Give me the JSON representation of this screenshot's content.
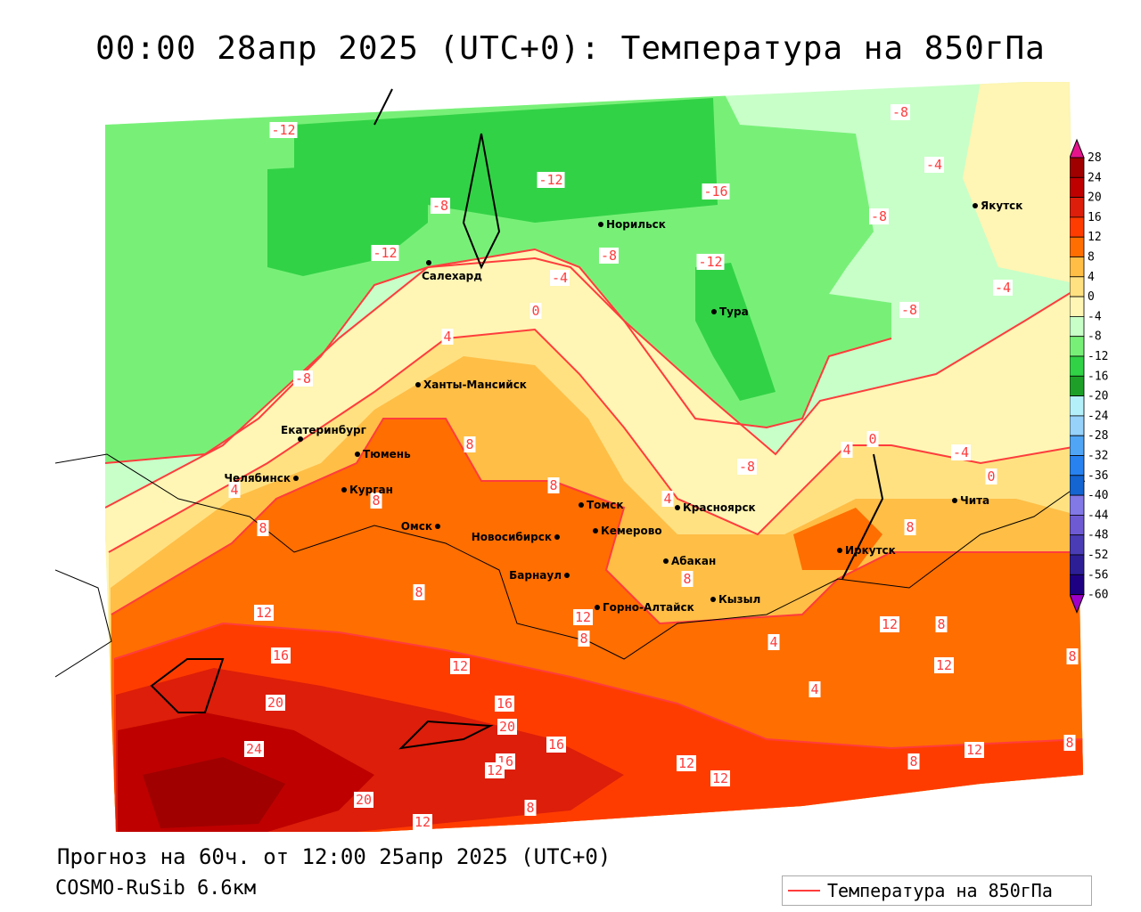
{
  "title": "00:00 28апр 2025 (UTC+0): Температура на 850гПа",
  "forecast": "Прогноз на 60ч. от 12:00 25апр 2025 (UTC+0)",
  "model": "COSMO-RuSib 6.6км",
  "legend": {
    "label": "Температура на 850гПа",
    "line_color": "#ff3c3c"
  },
  "colorbar": {
    "labels": [
      "28",
      "24",
      "20",
      "16",
      "12",
      "8",
      "4",
      "0",
      "-4",
      "-8",
      "-12",
      "-16",
      "-20",
      "-24",
      "-28",
      "-32",
      "-36",
      "-40",
      "-44",
      "-48",
      "-52",
      "-56",
      "-60"
    ],
    "colors": [
      "#a00000",
      "#be0000",
      "#dc1e0a",
      "#ff3c00",
      "#ff6e00",
      "#ffbe46",
      "#ffe182",
      "#fff5b4",
      "#c8ffc8",
      "#78f078",
      "#32d246",
      "#1ea028",
      "#b4f0fa",
      "#96d2fa",
      "#50a5f5",
      "#2882f0",
      "#1464d2",
      "#8278e6",
      "#6e5ad2",
      "#4a3cb4",
      "#2d1e96",
      "#1e0082"
    ],
    "top_color": "#e6148c",
    "bottom_color": "#a000c8"
  },
  "cities": [
    "Якутск",
    "Норильск",
    "Салехард",
    "Тура",
    "Ханты-Мансийск",
    "Екатеринбург",
    "Тюмень",
    "Челябинск",
    "Курган",
    "Омск",
    "Новосибирск",
    "Томск",
    "Кемерово",
    "Красноярск",
    "Абакан",
    "Барнаул",
    "Горно-Алтайск",
    "Кызыл",
    "Иркутск",
    "Чита"
  ],
  "contour_labels": [
    "-12",
    "-8",
    "-12",
    "-8",
    "-16",
    "-12",
    "-8",
    "-8",
    "-8",
    "-4",
    "-4",
    "0",
    "4",
    "-4",
    "-12",
    "-8",
    "-8",
    "8",
    "8",
    "4",
    "4",
    "8",
    "0",
    "-4",
    "0",
    "8",
    "4",
    "8",
    "12",
    "8",
    "12",
    "16",
    "20",
    "24",
    "12",
    "16",
    "20",
    "16",
    "12",
    "16",
    "12",
    "12",
    "8",
    "8",
    "12",
    "8",
    "12",
    "8",
    "12",
    "8",
    "8",
    "20",
    "12",
    "8",
    "4",
    "4"
  ]
}
